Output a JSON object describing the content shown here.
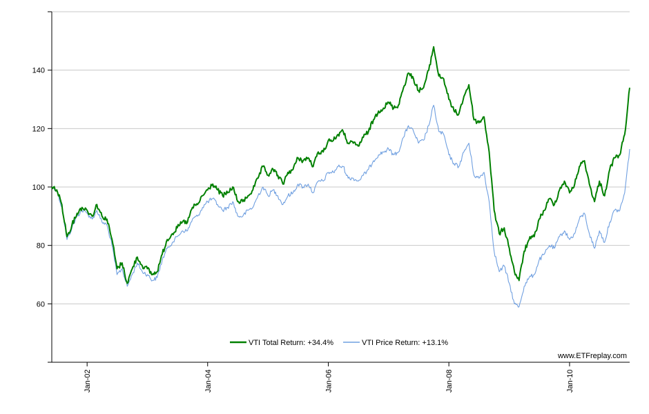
{
  "chart_data": {
    "type": "line",
    "title": "",
    "xlabel": "",
    "ylabel": "",
    "x_range": [
      "2001-06-01",
      "2010-12-31"
    ],
    "ylim": [
      40,
      160
    ],
    "y_ticks": [
      60,
      80,
      100,
      120,
      140
    ],
    "x_ticks": [
      {
        "date": "2002-01-01",
        "label": "Jan-02"
      },
      {
        "date": "2004-01-01",
        "label": "Jan-04"
      },
      {
        "date": "2006-01-01",
        "label": "Jan-06"
      },
      {
        "date": "2008-01-01",
        "label": "Jan-08"
      },
      {
        "date": "2010-01-01",
        "label": "Jan-10"
      }
    ],
    "grid": true,
    "legend_position": "bottom-center",
    "series": [
      {
        "name": "VTI Total Return: +34.4%",
        "color": "#008000",
        "points": [
          [
            "2001-06-01",
            100
          ],
          [
            "2001-07-01",
            99
          ],
          [
            "2001-08-01",
            94
          ],
          [
            "2001-09-01",
            83
          ],
          [
            "2001-10-01",
            87
          ],
          [
            "2001-11-01",
            91
          ],
          [
            "2001-12-01",
            93
          ],
          [
            "2002-01-01",
            92
          ],
          [
            "2002-02-01",
            90
          ],
          [
            "2002-03-01",
            94
          ],
          [
            "2002-04-01",
            90
          ],
          [
            "2002-05-01",
            89
          ],
          [
            "2002-06-01",
            82
          ],
          [
            "2002-07-01",
            72
          ],
          [
            "2002-08-01",
            74
          ],
          [
            "2002-09-01",
            67
          ],
          [
            "2002-10-01",
            72
          ],
          [
            "2002-11-01",
            76
          ],
          [
            "2002-12-01",
            73
          ],
          [
            "2003-01-01",
            72
          ],
          [
            "2003-02-01",
            70
          ],
          [
            "2003-03-01",
            71
          ],
          [
            "2003-04-01",
            77
          ],
          [
            "2003-05-01",
            82
          ],
          [
            "2003-06-01",
            84
          ],
          [
            "2003-07-01",
            86
          ],
          [
            "2003-08-01",
            88
          ],
          [
            "2003-09-01",
            88
          ],
          [
            "2003-10-01",
            93
          ],
          [
            "2003-11-01",
            94
          ],
          [
            "2003-12-01",
            97
          ],
          [
            "2004-01-01",
            99
          ],
          [
            "2004-02-01",
            101
          ],
          [
            "2004-03-01",
            99
          ],
          [
            "2004-04-01",
            97
          ],
          [
            "2004-05-01",
            98
          ],
          [
            "2004-06-01",
            100
          ],
          [
            "2004-07-01",
            95
          ],
          [
            "2004-08-01",
            95
          ],
          [
            "2004-09-01",
            97
          ],
          [
            "2004-10-01",
            99
          ],
          [
            "2004-11-01",
            103
          ],
          [
            "2004-12-01",
            107
          ],
          [
            "2005-01-01",
            104
          ],
          [
            "2005-02-01",
            106
          ],
          [
            "2005-03-01",
            104
          ],
          [
            "2005-04-01",
            101
          ],
          [
            "2005-05-01",
            105
          ],
          [
            "2005-06-01",
            106
          ],
          [
            "2005-07-01",
            110
          ],
          [
            "2005-08-01",
            109
          ],
          [
            "2005-09-01",
            110
          ],
          [
            "2005-10-01",
            107
          ],
          [
            "2005-11-01",
            112
          ],
          [
            "2005-12-01",
            112
          ],
          [
            "2006-01-01",
            116
          ],
          [
            "2006-02-01",
            116
          ],
          [
            "2006-03-01",
            118
          ],
          [
            "2006-04-01",
            119
          ],
          [
            "2006-05-01",
            115
          ],
          [
            "2006-06-01",
            115
          ],
          [
            "2006-07-01",
            114
          ],
          [
            "2006-08-01",
            117
          ],
          [
            "2006-09-01",
            119
          ],
          [
            "2006-10-01",
            123
          ],
          [
            "2006-11-01",
            126
          ],
          [
            "2006-12-01",
            127
          ],
          [
            "2007-01-01",
            129
          ],
          [
            "2007-02-01",
            127
          ],
          [
            "2007-03-01",
            128
          ],
          [
            "2007-04-01",
            134
          ],
          [
            "2007-05-01",
            139
          ],
          [
            "2007-06-01",
            137
          ],
          [
            "2007-07-01",
            133
          ],
          [
            "2007-08-01",
            134
          ],
          [
            "2007-09-01",
            140
          ],
          [
            "2007-10-01",
            148
          ],
          [
            "2007-11-01",
            138
          ],
          [
            "2007-12-01",
            137
          ],
          [
            "2008-01-01",
            130
          ],
          [
            "2008-02-01",
            126
          ],
          [
            "2008-03-01",
            125
          ],
          [
            "2008-04-01",
            131
          ],
          [
            "2008-05-01",
            135
          ],
          [
            "2008-06-01",
            123
          ],
          [
            "2008-07-01",
            122
          ],
          [
            "2008-08-01",
            124
          ],
          [
            "2008-09-01",
            112
          ],
          [
            "2008-10-01",
            92
          ],
          [
            "2008-11-01",
            84
          ],
          [
            "2008-12-01",
            86
          ],
          [
            "2009-01-01",
            79
          ],
          [
            "2009-02-01",
            71
          ],
          [
            "2009-03-01",
            68
          ],
          [
            "2009-04-01",
            78
          ],
          [
            "2009-05-01",
            82
          ],
          [
            "2009-06-01",
            83
          ],
          [
            "2009-07-01",
            89
          ],
          [
            "2009-08-01",
            92
          ],
          [
            "2009-09-01",
            96
          ],
          [
            "2009-10-01",
            94
          ],
          [
            "2009-11-01",
            99
          ],
          [
            "2009-12-01",
            102
          ],
          [
            "2010-01-01",
            98
          ],
          [
            "2010-02-01",
            101
          ],
          [
            "2010-03-01",
            107
          ],
          [
            "2010-04-01",
            109
          ],
          [
            "2010-05-01",
            101
          ],
          [
            "2010-06-01",
            95
          ],
          [
            "2010-07-01",
            102
          ],
          [
            "2010-08-01",
            97
          ],
          [
            "2010-09-01",
            106
          ],
          [
            "2010-10-01",
            110
          ],
          [
            "2010-11-01",
            111
          ],
          [
            "2010-12-01",
            118
          ],
          [
            "2010-12-31",
            134
          ]
        ]
      },
      {
        "name": "VTI Price Return: +13.1%",
        "color": "#6f9fe0",
        "points": [
          [
            "2001-06-01",
            100
          ],
          [
            "2001-07-01",
            99
          ],
          [
            "2001-08-01",
            93
          ],
          [
            "2001-09-01",
            82
          ],
          [
            "2001-10-01",
            86
          ],
          [
            "2001-11-01",
            90
          ],
          [
            "2001-12-01",
            92
          ],
          [
            "2002-01-01",
            91
          ],
          [
            "2002-02-01",
            89
          ],
          [
            "2002-03-01",
            92
          ],
          [
            "2002-04-01",
            88
          ],
          [
            "2002-05-01",
            87
          ],
          [
            "2002-06-01",
            80
          ],
          [
            "2002-07-01",
            70
          ],
          [
            "2002-08-01",
            72
          ],
          [
            "2002-09-01",
            66
          ],
          [
            "2002-10-01",
            70
          ],
          [
            "2002-11-01",
            74
          ],
          [
            "2002-12-01",
            71
          ],
          [
            "2003-01-01",
            70
          ],
          [
            "2003-02-01",
            68
          ],
          [
            "2003-03-01",
            69
          ],
          [
            "2003-04-01",
            75
          ],
          [
            "2003-05-01",
            79
          ],
          [
            "2003-06-01",
            81
          ],
          [
            "2003-07-01",
            83
          ],
          [
            "2003-08-01",
            85
          ],
          [
            "2003-09-01",
            85
          ],
          [
            "2003-10-01",
            89
          ],
          [
            "2003-11-01",
            90
          ],
          [
            "2003-12-01",
            93
          ],
          [
            "2004-01-01",
            95
          ],
          [
            "2004-02-01",
            96
          ],
          [
            "2004-03-01",
            94
          ],
          [
            "2004-04-01",
            92
          ],
          [
            "2004-05-01",
            93
          ],
          [
            "2004-06-01",
            95
          ],
          [
            "2004-07-01",
            90
          ],
          [
            "2004-08-01",
            90
          ],
          [
            "2004-09-01",
            92
          ],
          [
            "2004-10-01",
            93
          ],
          [
            "2004-11-01",
            97
          ],
          [
            "2004-12-01",
            100
          ],
          [
            "2005-01-01",
            97
          ],
          [
            "2005-02-01",
            99
          ],
          [
            "2005-03-01",
            97
          ],
          [
            "2005-04-01",
            94
          ],
          [
            "2005-05-01",
            97
          ],
          [
            "2005-06-01",
            98
          ],
          [
            "2005-07-01",
            101
          ],
          [
            "2005-08-01",
            100
          ],
          [
            "2005-09-01",
            101
          ],
          [
            "2005-10-01",
            98
          ],
          [
            "2005-11-01",
            102
          ],
          [
            "2005-12-01",
            102
          ],
          [
            "2006-01-01",
            105
          ],
          [
            "2006-02-01",
            105
          ],
          [
            "2006-03-01",
            107
          ],
          [
            "2006-04-01",
            107
          ],
          [
            "2006-05-01",
            103
          ],
          [
            "2006-06-01",
            103
          ],
          [
            "2006-07-01",
            102
          ],
          [
            "2006-08-01",
            104
          ],
          [
            "2006-09-01",
            106
          ],
          [
            "2006-10-01",
            109
          ],
          [
            "2006-11-01",
            111
          ],
          [
            "2006-12-01",
            112
          ],
          [
            "2007-01-01",
            113
          ],
          [
            "2007-02-01",
            111
          ],
          [
            "2007-03-01",
            112
          ],
          [
            "2007-04-01",
            117
          ],
          [
            "2007-05-01",
            121
          ],
          [
            "2007-06-01",
            119
          ],
          [
            "2007-07-01",
            115
          ],
          [
            "2007-08-01",
            116
          ],
          [
            "2007-09-01",
            121
          ],
          [
            "2007-10-01",
            128
          ],
          [
            "2007-11-01",
            119
          ],
          [
            "2007-12-01",
            118
          ],
          [
            "2008-01-01",
            111
          ],
          [
            "2008-02-01",
            108
          ],
          [
            "2008-03-01",
            107
          ],
          [
            "2008-04-01",
            112
          ],
          [
            "2008-05-01",
            115
          ],
          [
            "2008-06-01",
            104
          ],
          [
            "2008-07-01",
            103
          ],
          [
            "2008-08-01",
            105
          ],
          [
            "2008-09-01",
            95
          ],
          [
            "2008-10-01",
            78
          ],
          [
            "2008-11-01",
            71
          ],
          [
            "2008-12-01",
            73
          ],
          [
            "2009-01-01",
            67
          ],
          [
            "2009-02-01",
            60
          ],
          [
            "2009-03-01",
            59
          ],
          [
            "2009-04-01",
            66
          ],
          [
            "2009-05-01",
            69
          ],
          [
            "2009-06-01",
            70
          ],
          [
            "2009-07-01",
            75
          ],
          [
            "2009-08-01",
            77
          ],
          [
            "2009-09-01",
            80
          ],
          [
            "2009-10-01",
            79
          ],
          [
            "2009-11-01",
            83
          ],
          [
            "2009-12-01",
            85
          ],
          [
            "2010-01-01",
            82
          ],
          [
            "2010-02-01",
            84
          ],
          [
            "2010-03-01",
            89
          ],
          [
            "2010-04-01",
            91
          ],
          [
            "2010-05-01",
            84
          ],
          [
            "2010-06-01",
            79
          ],
          [
            "2010-07-01",
            85
          ],
          [
            "2010-08-01",
            81
          ],
          [
            "2010-09-01",
            88
          ],
          [
            "2010-10-01",
            92
          ],
          [
            "2010-11-01",
            92
          ],
          [
            "2010-12-01",
            98
          ],
          [
            "2010-12-31",
            113
          ]
        ]
      }
    ]
  },
  "credit": "www.ETFreplay.com"
}
